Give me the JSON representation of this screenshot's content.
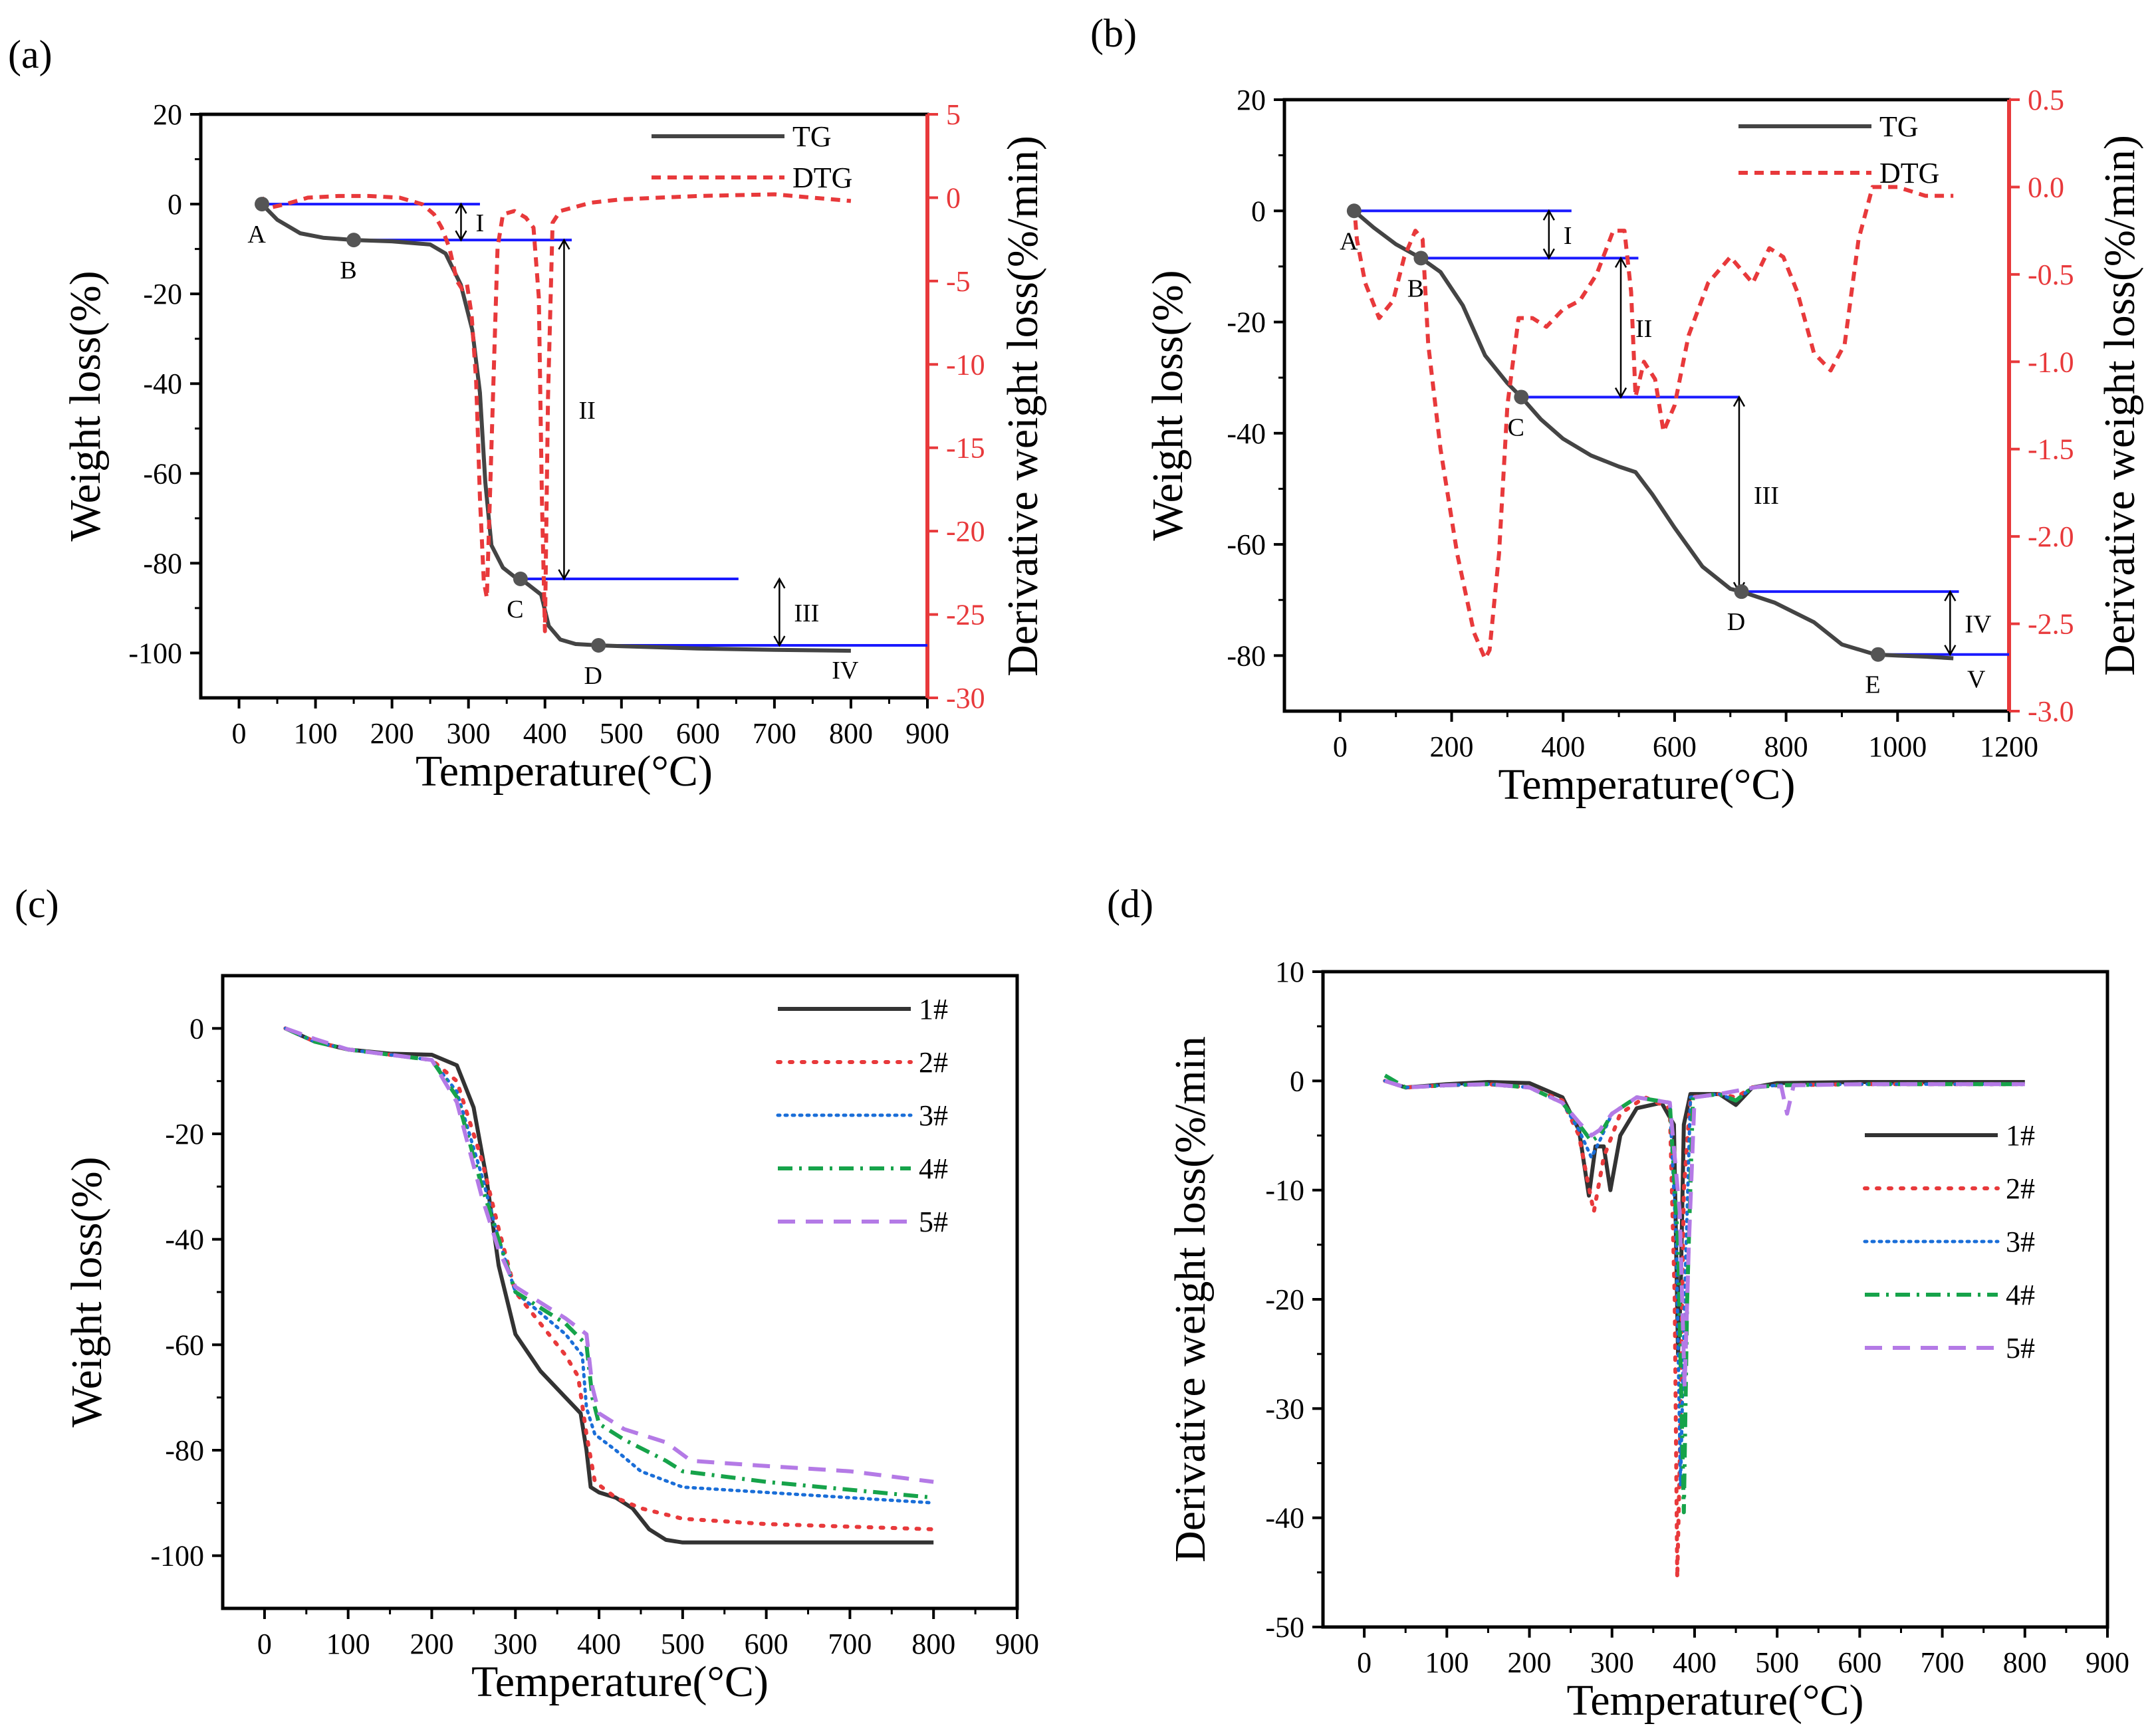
{
  "figure": {
    "panels": [
      "(a)",
      "(b)",
      "(c)",
      "(d)"
    ]
  },
  "colors": {
    "tg": "#444444",
    "dtg": "#e8393b",
    "stage_line": "#1a1aff",
    "s1": "#333333",
    "s2": "#e8393b",
    "s3": "#1a6ed8",
    "s4": "#16a34a",
    "s5": "#b47ae6"
  },
  "chart_data": [
    {
      "panel": "(a)",
      "type": "line",
      "xlabel": "Temperature(°C)",
      "ylabel": "Weight loss(%)",
      "y2label": "Derivative weight loss(%/min)",
      "xlim": [
        -50,
        900
      ],
      "ylim": [
        -110,
        20
      ],
      "y2lim": [
        -30,
        5
      ],
      "xticks": [
        0,
        100,
        200,
        300,
        400,
        500,
        600,
        700,
        800,
        900
      ],
      "yticks": [
        20,
        0,
        -20,
        -40,
        -60,
        -80,
        -100
      ],
      "y2ticks": [
        5,
        0,
        -5,
        -10,
        -15,
        -20,
        -25,
        -30
      ],
      "legend": [
        "TG",
        "DTG"
      ],
      "series": [
        {
          "name": "TG",
          "axis": "left",
          "x": [
            30,
            50,
            80,
            110,
            150,
            200,
            250,
            270,
            290,
            305,
            315,
            322,
            330,
            345,
            360,
            368,
            380,
            395,
            405,
            420,
            440,
            470,
            500,
            600,
            700,
            800
          ],
          "y": [
            0,
            -3.5,
            -6.5,
            -7.5,
            -8,
            -8.3,
            -9,
            -11,
            -18,
            -28,
            -42,
            -62,
            -76,
            -81,
            -83,
            -83.5,
            -85,
            -87,
            -94,
            -97,
            -98,
            -98.3,
            -98.5,
            -99,
            -99.3,
            -99.5
          ]
        },
        {
          "name": "DTG",
          "axis": "right",
          "x": [
            30,
            40,
            60,
            90,
            130,
            170,
            210,
            240,
            255,
            265,
            275,
            285,
            292,
            298,
            304,
            310,
            315,
            320,
            324,
            330,
            338,
            345,
            360,
            375,
            385,
            392,
            396,
            400,
            404,
            410,
            420,
            460,
            500,
            600,
            700,
            800
          ],
          "y": [
            0,
            -0.6,
            -0.4,
            0.0,
            0.1,
            0.1,
            0.0,
            -0.4,
            -1.0,
            -1.8,
            -3.0,
            -5.0,
            -5.5,
            -5.2,
            -7.0,
            -11.0,
            -18.0,
            -23.0,
            -24.0,
            -15.0,
            -3.0,
            -1.0,
            -0.8,
            -1.2,
            -1.8,
            -6.0,
            -18.0,
            -26.0,
            -12.0,
            -1.5,
            -0.8,
            -0.3,
            -0.1,
            0.1,
            0.2,
            -0.2
          ]
        }
      ],
      "points": [
        {
          "label": "A",
          "x": 30,
          "y": 0
        },
        {
          "label": "B",
          "x": 150,
          "y": -8
        },
        {
          "label": "C",
          "x": 368,
          "y": -83.5
        },
        {
          "label": "D",
          "x": 470,
          "y": -98.3
        }
      ],
      "stages": [
        "I",
        "II",
        "III",
        "IV"
      ]
    },
    {
      "panel": "(b)",
      "type": "line",
      "xlabel": "Temperature(°C)",
      "ylabel": "Weight loss(%)",
      "y2label": "Derivative weight loss(%/min)",
      "xlim": [
        -100,
        1200
      ],
      "ylim": [
        -90,
        20
      ],
      "y2lim": [
        -3.0,
        0.5
      ],
      "xticks": [
        0,
        200,
        400,
        600,
        800,
        1000,
        1200
      ],
      "yticks": [
        20,
        0,
        -20,
        -40,
        -60,
        -80
      ],
      "y2ticks": [
        0.5,
        0.0,
        -0.5,
        -1.0,
        -1.5,
        -2.0,
        -2.5,
        -3.0
      ],
      "legend": [
        "TG",
        "DTG"
      ],
      "series": [
        {
          "name": "TG",
          "axis": "left",
          "x": [
            25,
            60,
            100,
            145,
            180,
            220,
            260,
            300,
            325,
            360,
            400,
            450,
            500,
            530,
            560,
            600,
            650,
            700,
            720,
            780,
            850,
            900,
            960,
            1000,
            1050,
            1100
          ],
          "y": [
            0,
            -3,
            -6,
            -8.5,
            -11,
            -17,
            -26,
            -31,
            -33.5,
            -37.5,
            -41,
            -44,
            -46,
            -47,
            -51,
            -57,
            -64,
            -68,
            -68.5,
            -70.5,
            -74,
            -78,
            -79.8,
            -80,
            -80.2,
            -80.5
          ]
        },
        {
          "name": "DTG",
          "axis": "right",
          "x": [
            25,
            30,
            45,
            70,
            95,
            115,
            135,
            148,
            158,
            180,
            210,
            240,
            260,
            268,
            285,
            300,
            320,
            345,
            370,
            400,
            430,
            460,
            490,
            510,
            522,
            530,
            545,
            565,
            580,
            600,
            625,
            660,
            700,
            740,
            770,
            795,
            820,
            850,
            880,
            905,
            930,
            955,
            1000,
            1050,
            1100
          ],
          "y": [
            -0.1,
            -0.3,
            -0.55,
            -0.75,
            -0.65,
            -0.4,
            -0.25,
            -0.3,
            -0.9,
            -1.5,
            -2.1,
            -2.55,
            -2.7,
            -2.65,
            -2.1,
            -1.25,
            -0.75,
            -0.75,
            -0.8,
            -0.7,
            -0.65,
            -0.5,
            -0.25,
            -0.25,
            -0.6,
            -1.2,
            -1.0,
            -1.1,
            -1.4,
            -1.25,
            -0.85,
            -0.55,
            -0.4,
            -0.55,
            -0.35,
            -0.4,
            -0.6,
            -0.95,
            -1.05,
            -0.9,
            -0.3,
            -0.0,
            0.0,
            -0.05,
            -0.05
          ]
        }
      ],
      "points": [
        {
          "label": "A",
          "x": 25,
          "y": 0
        },
        {
          "label": "B",
          "x": 145,
          "y": -8.5
        },
        {
          "label": "C",
          "x": 325,
          "y": -33.5
        },
        {
          "label": "D",
          "x": 720,
          "y": -68.5
        },
        {
          "label": "E",
          "x": 965,
          "y": -79.8
        }
      ],
      "stages": [
        "I",
        "II",
        "III",
        "IV",
        "V"
      ]
    },
    {
      "panel": "(c)",
      "type": "line",
      "xlabel": "Temperature(°C)",
      "ylabel": "Weight loss(%)",
      "xlim": [
        -50,
        900
      ],
      "ylim": [
        -110,
        10
      ],
      "xticks": [
        0,
        100,
        200,
        300,
        400,
        500,
        600,
        700,
        800,
        900
      ],
      "yticks": [
        0,
        -20,
        -40,
        -60,
        -80,
        -100
      ],
      "legend": [
        "1#",
        "2#",
        "3#",
        "4#",
        "5#"
      ],
      "series": [
        {
          "name": "1#",
          "x": [
            25,
            60,
            100,
            150,
            200,
            230,
            250,
            265,
            280,
            300,
            330,
            360,
            378,
            385,
            390,
            400,
            420,
            440,
            460,
            480,
            500,
            600,
            700,
            800
          ],
          "y": [
            0,
            -2.5,
            -4,
            -4.8,
            -5,
            -7,
            -15,
            -28,
            -45,
            -58,
            -65,
            -70,
            -73,
            -80,
            -87,
            -88,
            -89,
            -91,
            -95,
            -97,
            -97.5,
            -97.5,
            -97.5,
            -97.5
          ]
        },
        {
          "name": "2#",
          "x": [
            25,
            60,
            100,
            150,
            200,
            230,
            260,
            280,
            300,
            330,
            360,
            375,
            385,
            395,
            420,
            450,
            500,
            600,
            700,
            800
          ],
          "y": [
            0,
            -2.5,
            -4,
            -5,
            -6,
            -10,
            -25,
            -38,
            -50,
            -56,
            -62,
            -66,
            -77,
            -86,
            -89,
            -91,
            -93,
            -94,
            -94.5,
            -95
          ]
        },
        {
          "name": "3#",
          "x": [
            25,
            60,
            100,
            150,
            200,
            230,
            260,
            280,
            300,
            330,
            360,
            380,
            385,
            395,
            420,
            450,
            500,
            600,
            700,
            800
          ],
          "y": [
            0,
            -2.5,
            -4,
            -5,
            -6,
            -12,
            -28,
            -40,
            -50,
            -54,
            -58,
            -62,
            -72,
            -77,
            -80,
            -84,
            -87,
            -88,
            -89,
            -90
          ]
        },
        {
          "name": "4#",
          "x": [
            25,
            60,
            100,
            150,
            200,
            230,
            260,
            280,
            300,
            330,
            360,
            385,
            392,
            400,
            430,
            480,
            500,
            600,
            700,
            800
          ],
          "y": [
            0,
            -2.5,
            -4,
            -5,
            -6,
            -13,
            -30,
            -40,
            -50,
            -53,
            -56,
            -60,
            -70,
            -75,
            -78,
            -82,
            -84,
            -86,
            -87.5,
            -89
          ]
        },
        {
          "name": "5#",
          "x": [
            25,
            60,
            100,
            150,
            200,
            230,
            260,
            280,
            300,
            330,
            360,
            385,
            392,
            400,
            430,
            480,
            510,
            600,
            700,
            800
          ],
          "y": [
            0,
            -2,
            -4,
            -5,
            -6,
            -14,
            -32,
            -42,
            -49,
            -52,
            -55,
            -58,
            -68,
            -73,
            -76,
            -78.5,
            -82,
            -83,
            -84,
            -86
          ]
        }
      ]
    },
    {
      "panel": "(d)",
      "type": "line",
      "xlabel": "Temperature(°C)",
      "ylabel": "Derivative weight loss(%/min",
      "xlim": [
        -50,
        900
      ],
      "ylim": [
        -50,
        10
      ],
      "xticks": [
        0,
        100,
        200,
        300,
        400,
        500,
        600,
        700,
        800,
        900
      ],
      "yticks": [
        10,
        0,
        -10,
        -20,
        -30,
        -40,
        -50
      ],
      "legend": [
        "1#",
        "2#",
        "3#",
        "4#",
        "5#"
      ],
      "series": [
        {
          "name": "1#",
          "x": [
            25,
            50,
            100,
            150,
            200,
            240,
            260,
            272,
            280,
            290,
            298,
            310,
            330,
            360,
            375,
            380,
            383,
            387,
            395,
            430,
            450,
            470,
            500,
            600,
            700,
            800
          ],
          "y": [
            0,
            -0.6,
            -0.3,
            -0.1,
            -0.2,
            -1.5,
            -4.5,
            -10.5,
            -6,
            -6,
            -10,
            -5,
            -2.5,
            -2,
            -4,
            -25,
            -20,
            -4,
            -1.2,
            -1.2,
            -2.2,
            -0.6,
            -0.2,
            -0.1,
            -0.1,
            -0.1
          ]
        },
        {
          "name": "2#",
          "x": [
            25,
            50,
            100,
            150,
            200,
            240,
            260,
            270,
            278,
            290,
            310,
            340,
            370,
            376,
            379,
            382,
            387,
            395,
            430,
            450,
            470,
            500,
            600,
            700,
            800
          ],
          "y": [
            0,
            -0.6,
            -0.4,
            -0.3,
            -0.6,
            -1.8,
            -5,
            -9,
            -12,
            -7,
            -3,
            -1.5,
            -2.5,
            -20,
            -45.5,
            -35,
            -10,
            -1.5,
            -1.2,
            -1.5,
            -0.6,
            -0.4,
            -0.3,
            -0.3,
            -0.3
          ]
        },
        {
          "name": "3#",
          "x": [
            25,
            50,
            100,
            150,
            200,
            240,
            260,
            275,
            285,
            300,
            330,
            370,
            378,
            383,
            388,
            395,
            430,
            450,
            470,
            500,
            600,
            700,
            800
          ],
          "y": [
            0,
            -0.6,
            -0.4,
            -0.3,
            -0.6,
            -2,
            -4.5,
            -7,
            -5.5,
            -3,
            -1.5,
            -2,
            -15,
            -37,
            -20,
            -1.5,
            -1.2,
            -1.8,
            -0.6,
            -0.4,
            -0.3,
            -0.3,
            -0.3
          ]
        },
        {
          "name": "4#",
          "x": [
            25,
            50,
            100,
            150,
            200,
            240,
            260,
            275,
            285,
            300,
            330,
            370,
            380,
            387,
            391,
            398,
            430,
            450,
            470,
            500,
            600,
            700,
            800
          ],
          "y": [
            0.5,
            -0.6,
            -0.4,
            -0.3,
            -0.6,
            -2,
            -4,
            -5.5,
            -5,
            -3,
            -1.5,
            -2,
            -15,
            -39.5,
            -20,
            -1.5,
            -1.2,
            -1.8,
            -0.6,
            -0.4,
            -0.3,
            -0.3,
            -0.3
          ]
        },
        {
          "name": "5#",
          "x": [
            25,
            50,
            100,
            150,
            200,
            240,
            260,
            275,
            285,
            300,
            330,
            370,
            382,
            388,
            393,
            400,
            430,
            480,
            505,
            512,
            520,
            600,
            700,
            800
          ],
          "y": [
            0,
            -0.6,
            -0.4,
            -0.3,
            -0.6,
            -2,
            -3.8,
            -5,
            -4.5,
            -3,
            -1.5,
            -2,
            -12,
            -28,
            -15,
            -1.5,
            -1.2,
            -0.5,
            -0.5,
            -3,
            -0.4,
            -0.3,
            -0.3,
            -0.3
          ]
        }
      ]
    }
  ]
}
